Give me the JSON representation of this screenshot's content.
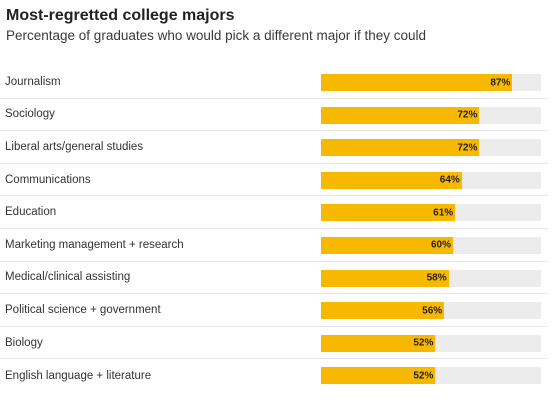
{
  "title": "Most-regretted college majors",
  "subtitle": "Percentage of graduates who would pick a different major if they could",
  "colors": {
    "bar": "#F9B800",
    "track": "#ECECEC"
  },
  "chart_data": {
    "type": "bar",
    "orientation": "horizontal",
    "title": "Most-regretted college majors",
    "subtitle": "Percentage of graduates who would pick a different major if they could",
    "xlim": [
      0,
      100
    ],
    "grid": false,
    "categories": [
      "Journalism",
      "Sociology",
      "Liberal arts/general studies",
      "Communications",
      "Education",
      "Marketing management + research",
      "Medical/clinical assisting",
      "Political science + government",
      "Biology",
      "English language + literature"
    ],
    "values": [
      87,
      72,
      72,
      64,
      61,
      60,
      58,
      56,
      52,
      52
    ],
    "value_labels": [
      "87%",
      "72%",
      "72%",
      "64%",
      "61%",
      "60%",
      "58%",
      "56%",
      "52%",
      "52%"
    ]
  }
}
